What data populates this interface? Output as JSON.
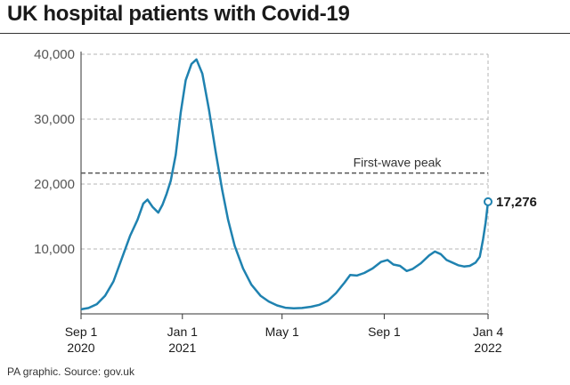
{
  "title": "UK hospital patients with Covid-19",
  "source": "PA graphic. Source: gov.uk",
  "chart_data": {
    "type": "line",
    "title": "UK hospital patients with Covid-19",
    "ylim": [
      0,
      40000
    ],
    "yticks": [
      10000,
      20000,
      30000,
      40000
    ],
    "ytick_labels": [
      "10,000",
      "20,000",
      "30,000",
      "40,000"
    ],
    "xticks": [
      {
        "date": "2020-09-01",
        "label": "Sep 1",
        "sublabel": "2020"
      },
      {
        "date": "2021-01-01",
        "label": "Jan 1",
        "sublabel": "2021"
      },
      {
        "date": "2021-05-01",
        "label": "May 1",
        "sublabel": ""
      },
      {
        "date": "2021-09-01",
        "label": "Sep 1",
        "sublabel": ""
      },
      {
        "date": "2022-01-04",
        "label": "Jan 4",
        "sublabel": "2022"
      }
    ],
    "xlim": [
      "2020-09-01",
      "2022-01-04"
    ],
    "reference_line": {
      "label": "First-wave peak",
      "value": 21700
    },
    "end_label": "17,276",
    "line_color": "#1f82b0",
    "series": [
      {
        "points": [
          [
            "2020-09-01",
            700
          ],
          [
            "2020-09-10",
            900
          ],
          [
            "2020-09-20",
            1500
          ],
          [
            "2020-09-30",
            2800
          ],
          [
            "2020-10-10",
            5000
          ],
          [
            "2020-10-20",
            8500
          ],
          [
            "2020-10-30",
            12000
          ],
          [
            "2020-11-08",
            14500
          ],
          [
            "2020-11-15",
            17000
          ],
          [
            "2020-11-20",
            17600
          ],
          [
            "2020-11-26",
            16500
          ],
          [
            "2020-12-03",
            15600
          ],
          [
            "2020-12-08",
            16800
          ],
          [
            "2020-12-13",
            18500
          ],
          [
            "2020-12-18",
            20500
          ],
          [
            "2020-12-24",
            24500
          ],
          [
            "2020-12-30",
            31000
          ],
          [
            "2021-01-05",
            36000
          ],
          [
            "2021-01-12",
            38500
          ],
          [
            "2021-01-18",
            39200
          ],
          [
            "2021-01-25",
            37000
          ],
          [
            "2021-02-02",
            31500
          ],
          [
            "2021-02-10",
            25000
          ],
          [
            "2021-02-18",
            19000
          ],
          [
            "2021-02-25",
            14500
          ],
          [
            "2021-03-05",
            10500
          ],
          [
            "2021-03-15",
            7000
          ],
          [
            "2021-03-25",
            4500
          ],
          [
            "2021-04-05",
            2800
          ],
          [
            "2021-04-15",
            1900
          ],
          [
            "2021-04-25",
            1300
          ],
          [
            "2021-05-05",
            950
          ],
          [
            "2021-05-15",
            850
          ],
          [
            "2021-05-25",
            900
          ],
          [
            "2021-06-05",
            1100
          ],
          [
            "2021-06-15",
            1400
          ],
          [
            "2021-06-25",
            2000
          ],
          [
            "2021-07-05",
            3200
          ],
          [
            "2021-07-15",
            4800
          ],
          [
            "2021-07-22",
            6000
          ],
          [
            "2021-07-30",
            5900
          ],
          [
            "2021-08-08",
            6300
          ],
          [
            "2021-08-18",
            7000
          ],
          [
            "2021-08-28",
            8000
          ],
          [
            "2021-09-05",
            8300
          ],
          [
            "2021-09-12",
            7600
          ],
          [
            "2021-09-20",
            7400
          ],
          [
            "2021-09-28",
            6600
          ],
          [
            "2021-10-05",
            6900
          ],
          [
            "2021-10-15",
            7800
          ],
          [
            "2021-10-25",
            9000
          ],
          [
            "2021-11-01",
            9600
          ],
          [
            "2021-11-08",
            9200
          ],
          [
            "2021-11-15",
            8300
          ],
          [
            "2021-11-22",
            7900
          ],
          [
            "2021-11-29",
            7500
          ],
          [
            "2021-12-06",
            7300
          ],
          [
            "2021-12-13",
            7400
          ],
          [
            "2021-12-20",
            7900
          ],
          [
            "2021-12-25",
            8800
          ],
          [
            "2021-12-29",
            11500
          ],
          [
            "2022-01-01",
            14000
          ],
          [
            "2022-01-04",
            17276
          ]
        ]
      }
    ]
  }
}
